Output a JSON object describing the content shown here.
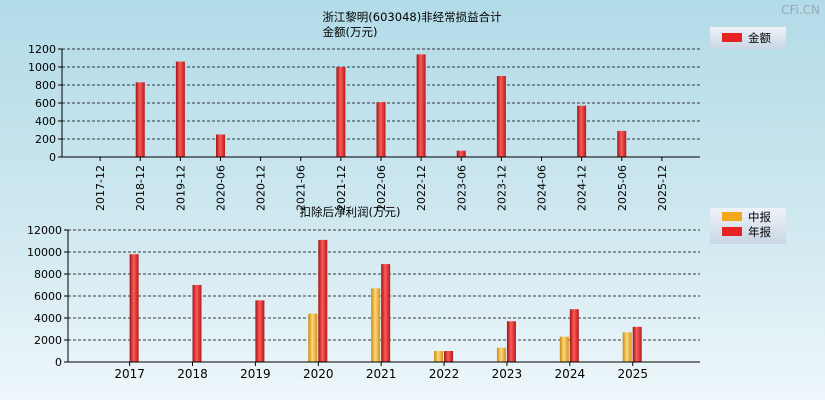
{
  "watermark": "CFi.CN",
  "colors": {
    "annual": "#e52323",
    "interim": "#f2a81d",
    "grid": "#000000"
  },
  "chart_data": [
    {
      "type": "bar",
      "title": "浙江黎明(603048)非经常损益合计",
      "ylabel": "金额(万元)",
      "legend": [
        "金额"
      ],
      "categories": [
        "2017-12",
        "2018-12",
        "2019-12",
        "2020-06",
        "2020-12",
        "2021-06",
        "2021-12",
        "2022-06",
        "2022-12",
        "2023-06",
        "2023-12",
        "2024-06",
        "2024-12",
        "2025-06",
        "2025-12"
      ],
      "values": [
        0,
        830,
        1060,
        250,
        0,
        0,
        1000,
        610,
        1140,
        70,
        900,
        0,
        570,
        290,
        0
      ],
      "ylim": [
        0,
        1200
      ],
      "yticks": [
        0,
        200,
        400,
        600,
        800,
        1000,
        1200
      ]
    },
    {
      "type": "bar",
      "title": "扣除后净利润(万元)",
      "legend": [
        "中报",
        "年报"
      ],
      "categories": [
        "2017",
        "2018",
        "2019",
        "2020",
        "2021",
        "2022",
        "2023",
        "2024",
        "2025"
      ],
      "series": [
        {
          "name": "中报",
          "values": [
            null,
            null,
            null,
            4400,
            6700,
            1000,
            1300,
            2300,
            2700
          ]
        },
        {
          "name": "年报",
          "values": [
            9800,
            7000,
            5600,
            11100,
            8900,
            1000,
            3700,
            4800,
            3200
          ]
        }
      ],
      "ylim": [
        0,
        12000
      ],
      "yticks": [
        0,
        2000,
        4000,
        6000,
        8000,
        10000,
        12000
      ]
    }
  ]
}
